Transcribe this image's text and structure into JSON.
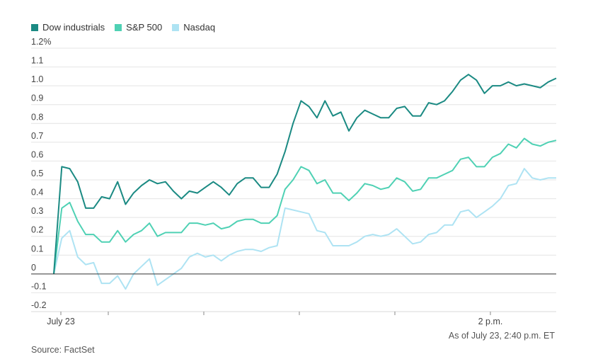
{
  "chart_data": {
    "type": "line",
    "title": "",
    "xlabel": "",
    "ylabel": "",
    "ylim": [
      -0.2,
      1.2
    ],
    "y_ticks": [
      -0.2,
      -0.1,
      0,
      0.1,
      0.2,
      0.3,
      0.4,
      0.5,
      0.6,
      0.7,
      0.8,
      0.9,
      1.0,
      1.1,
      1.2
    ],
    "y_tick_labels": [
      "-0.2",
      "-0.1",
      "0",
      "0.1",
      "0.2",
      "0.3",
      "0.4",
      "0.5",
      "0.6",
      "0.7",
      "0.8",
      "0.9",
      "1.0",
      "1.1",
      "1.2%"
    ],
    "x_tick_labels": [
      {
        "t": "9:30",
        "label": "July 23"
      },
      {
        "t": "10:00",
        "label": ""
      },
      {
        "t": "11:00",
        "label": ""
      },
      {
        "t": "12:00",
        "label": ""
      },
      {
        "t": "1:00",
        "label": ""
      },
      {
        "t": "2:00",
        "label": "2 p.m."
      }
    ],
    "x_minutes_per_point": 5,
    "grid": true,
    "legend_position": "top-left",
    "series": [
      {
        "name": "Dow industrials",
        "color": "#1b8a83",
        "values": [
          0.0,
          0.57,
          0.56,
          0.49,
          0.35,
          0.35,
          0.41,
          0.4,
          0.49,
          0.37,
          0.43,
          0.47,
          0.5,
          0.48,
          0.49,
          0.44,
          0.4,
          0.44,
          0.43,
          0.46,
          0.49,
          0.46,
          0.42,
          0.48,
          0.51,
          0.51,
          0.46,
          0.46,
          0.53,
          0.65,
          0.8,
          0.92,
          0.89,
          0.83,
          0.92,
          0.84,
          0.86,
          0.76,
          0.83,
          0.87,
          0.85,
          0.83,
          0.83,
          0.88,
          0.89,
          0.84,
          0.84,
          0.91,
          0.9,
          0.92,
          0.97,
          1.03,
          1.06,
          1.03,
          0.96,
          1.0,
          1.0,
          1.02,
          1.0,
          1.01,
          1.0,
          0.99,
          1.02,
          1.04
        ]
      },
      {
        "name": "S&P 500",
        "color": "#4fd1b4",
        "values": [
          0.0,
          0.35,
          0.38,
          0.28,
          0.21,
          0.21,
          0.17,
          0.17,
          0.23,
          0.17,
          0.21,
          0.23,
          0.27,
          0.2,
          0.22,
          0.22,
          0.22,
          0.27,
          0.27,
          0.26,
          0.27,
          0.24,
          0.25,
          0.28,
          0.29,
          0.29,
          0.27,
          0.27,
          0.31,
          0.45,
          0.5,
          0.57,
          0.55,
          0.48,
          0.5,
          0.43,
          0.43,
          0.39,
          0.43,
          0.48,
          0.47,
          0.45,
          0.46,
          0.51,
          0.49,
          0.44,
          0.45,
          0.51,
          0.51,
          0.53,
          0.55,
          0.61,
          0.62,
          0.57,
          0.57,
          0.62,
          0.64,
          0.69,
          0.67,
          0.72,
          0.69,
          0.68,
          0.7,
          0.71
        ]
      },
      {
        "name": "Nasdaq",
        "color": "#aee3f3",
        "values": [
          0.0,
          0.19,
          0.23,
          0.09,
          0.05,
          0.06,
          -0.05,
          -0.05,
          -0.01,
          -0.08,
          0.0,
          0.04,
          0.08,
          -0.06,
          -0.03,
          0.0,
          0.03,
          0.09,
          0.11,
          0.09,
          0.1,
          0.07,
          0.1,
          0.12,
          0.13,
          0.13,
          0.12,
          0.14,
          0.15,
          0.35,
          0.34,
          0.33,
          0.32,
          0.23,
          0.22,
          0.15,
          0.15,
          0.15,
          0.17,
          0.2,
          0.21,
          0.2,
          0.21,
          0.24,
          0.2,
          0.16,
          0.17,
          0.21,
          0.22,
          0.26,
          0.26,
          0.33,
          0.34,
          0.3,
          0.33,
          0.36,
          0.4,
          0.47,
          0.48,
          0.56,
          0.51,
          0.5,
          0.51,
          0.51
        ]
      }
    ]
  },
  "note": "As of July 23, 2:40 p.m. ET",
  "source": "Source: FactSet"
}
